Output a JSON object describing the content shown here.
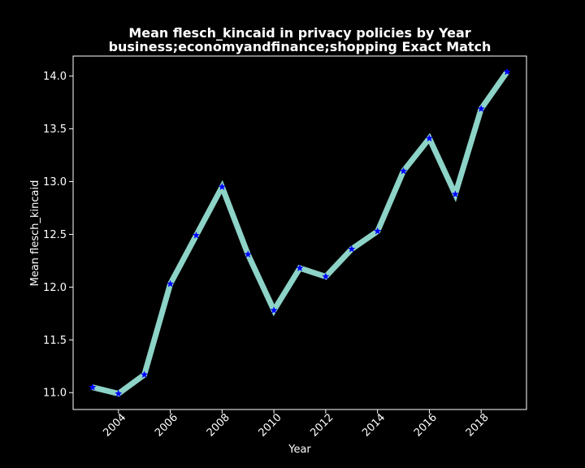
{
  "chart_data": {
    "type": "line",
    "title": "Mean flesch_kincaid in privacy policies by Year",
    "subtitle": "business;economyandfinance;shopping Exact Match",
    "xlabel": "Year",
    "ylabel": "Mean flesch_kincaid",
    "x": [
      2003,
      2004,
      2005,
      2006,
      2007,
      2008,
      2009,
      2010,
      2011,
      2012,
      2013,
      2014,
      2015,
      2016,
      2017,
      2018,
      2019
    ],
    "series": [
      {
        "values": [
          11.05,
          10.99,
          11.17,
          12.03,
          12.49,
          12.95,
          12.31,
          11.78,
          12.18,
          12.1,
          12.36,
          12.53,
          13.1,
          13.41,
          12.88,
          13.69,
          14.04
        ]
      }
    ],
    "xlim": [
      2002.25,
      2019.75
    ],
    "ylim": [
      10.84,
      14.19
    ],
    "xticks": [
      "2004",
      "2006",
      "2008",
      "2010",
      "2012",
      "2014",
      "2016",
      "2018"
    ],
    "yticks": [
      "11.0",
      "11.5",
      "12.0",
      "12.5",
      "13.0",
      "13.5",
      "14.0"
    ],
    "grid": false,
    "line_color": "#8dd3c7",
    "marker_color": "#0000ff",
    "marker": "star",
    "background_color": "#000000",
    "text_color": "#ffffff"
  }
}
